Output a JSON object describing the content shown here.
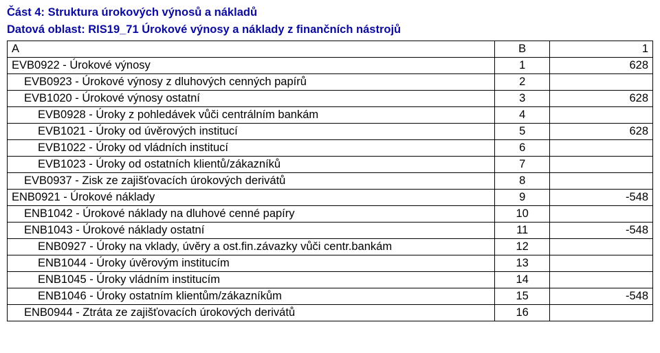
{
  "title_line1": "Část 4: Struktura úrokových výnosů a nákladů",
  "title_line2": "Datová oblast: RIS19_71 Úrokové výnosy a náklady z finančních nástrojů",
  "title_color": "#0a0a9e",
  "columns": {
    "a": "A",
    "b": "B",
    "c": "1"
  },
  "rows": [
    {
      "label": "EVB0922 - Úrokové výnosy",
      "indent": 0,
      "b": "1",
      "v": "628"
    },
    {
      "label": "EVB0923 - Úrokové výnosy z dluhových cenných papírů",
      "indent": 1,
      "b": "2",
      "v": ""
    },
    {
      "label": "EVB1020 - Úrokové výnosy ostatní",
      "indent": 1,
      "b": "3",
      "v": "628"
    },
    {
      "label": "EVB0928 - Úroky z pohledávek vůči centrálním bankám",
      "indent": 2,
      "b": "4",
      "v": ""
    },
    {
      "label": "EVB1021 - Úroky od úvěrových institucí",
      "indent": 2,
      "b": "5",
      "v": "628"
    },
    {
      "label": "EVB1022 - Úroky od vládních institucí",
      "indent": 2,
      "b": "6",
      "v": ""
    },
    {
      "label": "EVB1023 - Úroky od ostatních klientů/zákazníků",
      "indent": 2,
      "b": "7",
      "v": ""
    },
    {
      "label": "EVB0937 - Zisk ze zajišťovacích úrokových derivátů",
      "indent": 1,
      "b": "8",
      "v": ""
    },
    {
      "label": "ENB0921 - Úrokové náklady",
      "indent": 0,
      "b": "9",
      "v": "-548"
    },
    {
      "label": "ENB1042 - Úrokové náklady na dluhové cenné papíry",
      "indent": 1,
      "b": "10",
      "v": ""
    },
    {
      "label": "ENB1043 - Úrokové náklady ostatní",
      "indent": 1,
      "b": "11",
      "v": "-548"
    },
    {
      "label": "ENB0927 - Úroky na vklady, úvěry a ost.fin.závazky vůči centr.bankám",
      "indent": 2,
      "b": "12",
      "v": ""
    },
    {
      "label": "ENB1044 - Úroky úvěrovým institucím",
      "indent": 2,
      "b": "13",
      "v": ""
    },
    {
      "label": "ENB1045 - Úroky vládním institucím",
      "indent": 2,
      "b": "14",
      "v": ""
    },
    {
      "label": "ENB1046 - Úroky ostatním klientům/zákazníkům",
      "indent": 2,
      "b": "15",
      "v": "-548"
    },
    {
      "label": "ENB0944 - Ztráta ze zajišťovacích úrokových derivátů",
      "indent": 1,
      "b": "16",
      "v": ""
    }
  ]
}
